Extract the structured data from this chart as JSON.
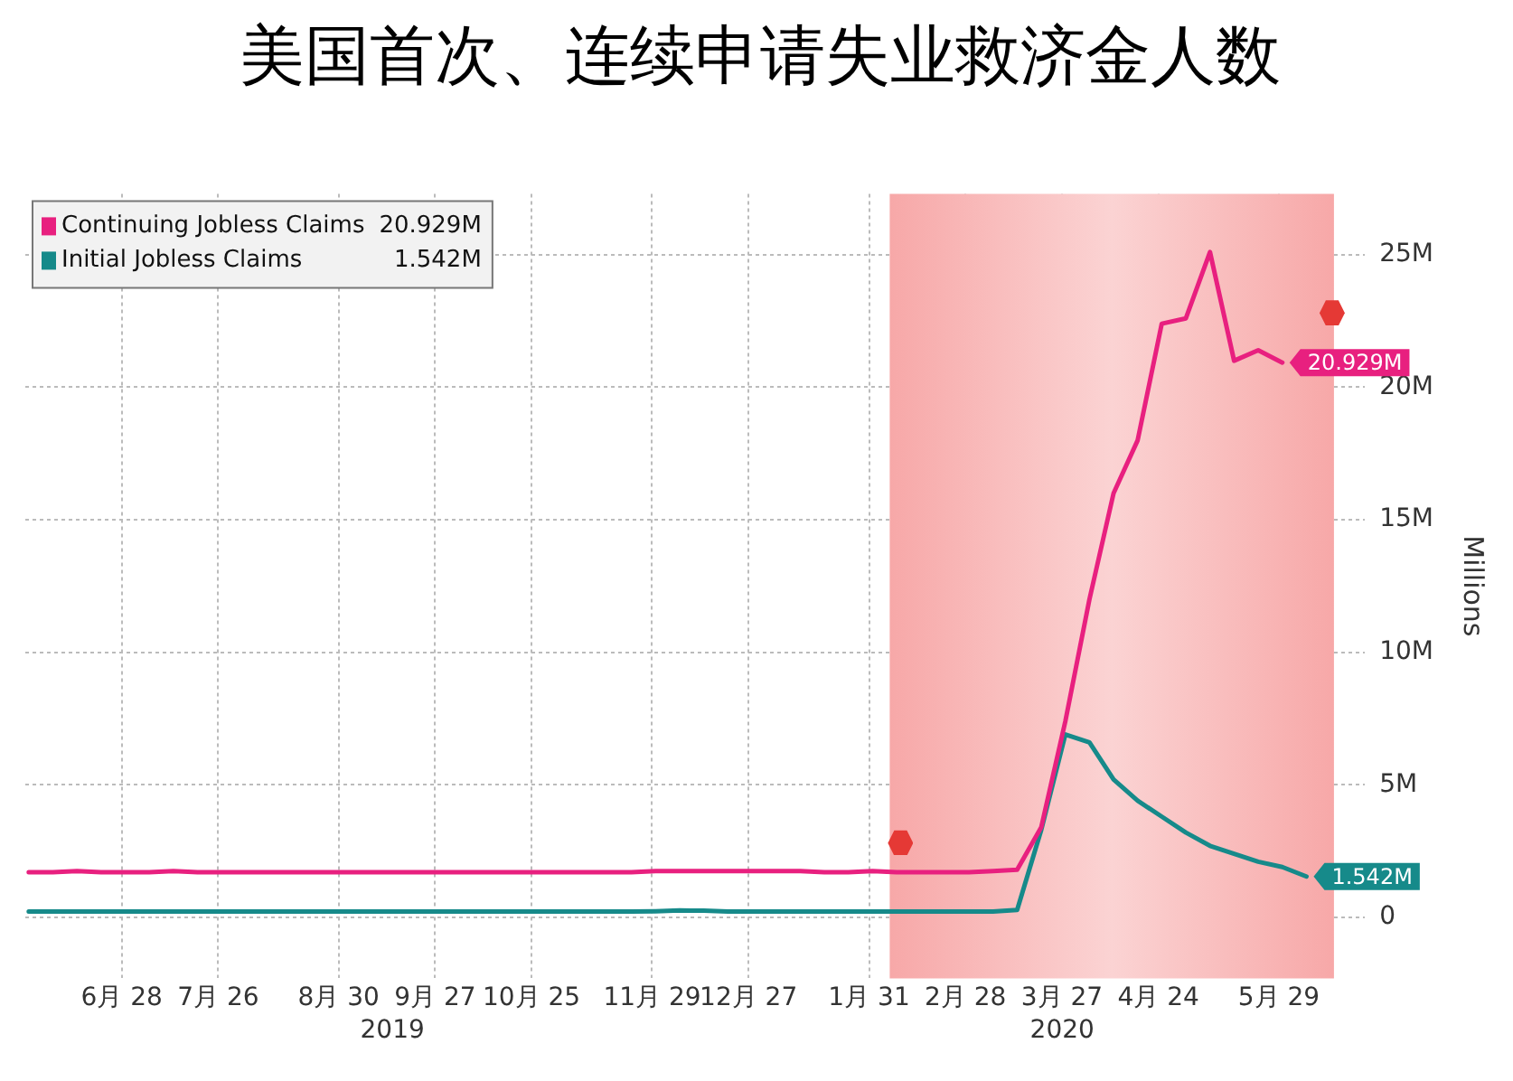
{
  "chart_data": {
    "type": "line",
    "title": "美国首次、连续申请失业救济金人数",
    "ylabel": "Millions",
    "x": [
      "2019-06-01",
      "2019-06-08",
      "2019-06-15",
      "2019-06-22",
      "2019-06-29",
      "2019-07-06",
      "2019-07-13",
      "2019-07-20",
      "2019-07-27",
      "2019-08-03",
      "2019-08-10",
      "2019-08-17",
      "2019-08-24",
      "2019-08-31",
      "2019-09-07",
      "2019-09-14",
      "2019-09-21",
      "2019-09-28",
      "2019-10-05",
      "2019-10-12",
      "2019-10-19",
      "2019-10-26",
      "2019-11-02",
      "2019-11-09",
      "2019-11-16",
      "2019-11-23",
      "2019-11-30",
      "2019-12-07",
      "2019-12-14",
      "2019-12-21",
      "2019-12-28",
      "2020-01-04",
      "2020-01-11",
      "2020-01-18",
      "2020-01-25",
      "2020-02-01",
      "2020-02-08",
      "2020-02-15",
      "2020-02-22",
      "2020-02-29",
      "2020-03-07",
      "2020-03-14",
      "2020-03-21",
      "2020-03-28",
      "2020-04-04",
      "2020-04-11",
      "2020-04-18",
      "2020-04-25",
      "2020-05-02",
      "2020-05-09",
      "2020-05-16",
      "2020-05-23",
      "2020-05-30",
      "2020-06-06"
    ],
    "series": [
      {
        "name": "Continuing Jobless Claims",
        "color": "#e8207f",
        "values": [
          1.7,
          1.7,
          1.75,
          1.7,
          1.7,
          1.7,
          1.75,
          1.7,
          1.7,
          1.7,
          1.7,
          1.7,
          1.7,
          1.7,
          1.7,
          1.7,
          1.7,
          1.7,
          1.7,
          1.7,
          1.7,
          1.7,
          1.7,
          1.7,
          1.7,
          1.7,
          1.75,
          1.75,
          1.75,
          1.75,
          1.75,
          1.75,
          1.75,
          1.7,
          1.7,
          1.75,
          1.7,
          1.7,
          1.7,
          1.7,
          1.75,
          1.8,
          3.4,
          7.4,
          12.0,
          16.0,
          18.0,
          22.4,
          22.6,
          25.1,
          21.0,
          21.4,
          20.929,
          null
        ],
        "value_labels": [
          null,
          null,
          null,
          null,
          null,
          null,
          null,
          null,
          null,
          null,
          null,
          null,
          null,
          null,
          null,
          null,
          null,
          null,
          null,
          null,
          null,
          null,
          null,
          null,
          null,
          null,
          null,
          null,
          null,
          null,
          null,
          null,
          null,
          null,
          null,
          null,
          null,
          null,
          null,
          null,
          null,
          null,
          null,
          null,
          null,
          null,
          null,
          null,
          null,
          null,
          null,
          null,
          "20.929M",
          null
        ]
      },
      {
        "name": "Initial Jobless Claims",
        "color": "#168a8a",
        "values": [
          0.22,
          0.22,
          0.22,
          0.22,
          0.22,
          0.22,
          0.22,
          0.22,
          0.22,
          0.22,
          0.22,
          0.22,
          0.22,
          0.22,
          0.22,
          0.22,
          0.22,
          0.22,
          0.22,
          0.22,
          0.22,
          0.22,
          0.22,
          0.22,
          0.22,
          0.22,
          0.23,
          0.26,
          0.25,
          0.22,
          0.22,
          0.22,
          0.22,
          0.22,
          0.22,
          0.22,
          0.22,
          0.22,
          0.22,
          0.22,
          0.22,
          0.28,
          3.3,
          6.9,
          6.6,
          5.2,
          4.4,
          3.8,
          3.2,
          2.7,
          2.4,
          2.1,
          1.9,
          1.542
        ],
        "value_labels": [
          null,
          null,
          null,
          null,
          null,
          null,
          null,
          null,
          null,
          null,
          null,
          null,
          null,
          null,
          null,
          null,
          null,
          null,
          null,
          null,
          null,
          null,
          null,
          null,
          null,
          null,
          null,
          null,
          null,
          null,
          null,
          null,
          null,
          null,
          null,
          null,
          null,
          null,
          null,
          null,
          null,
          null,
          null,
          null,
          null,
          null,
          null,
          null,
          null,
          null,
          null,
          null,
          null,
          "1.542M"
        ]
      }
    ],
    "xlim": [
      "2019-05-31",
      "2020-06-23"
    ],
    "xticks": [
      {
        "value": "2019-06-28",
        "label": "6月 28"
      },
      {
        "value": "2019-07-26",
        "label": "7月 26"
      },
      {
        "value": "2019-08-30",
        "label": "8月 30"
      },
      {
        "value": "2019-09-27",
        "label": "9月 27"
      },
      {
        "value": "2019-10-25",
        "label": "10月 25"
      },
      {
        "value": "2019-11-29",
        "label": "11月 29"
      },
      {
        "value": "2019-12-27",
        "label": "12月 27"
      },
      {
        "value": "2020-01-31",
        "label": "1月 31"
      },
      {
        "value": "2020-02-28",
        "label": "2月 28"
      },
      {
        "value": "2020-03-27",
        "label": "3月 27"
      },
      {
        "value": "2020-04-24",
        "label": "4月 24"
      },
      {
        "value": "2020-05-29",
        "label": "5月 29"
      }
    ],
    "ylim": [
      -2.3,
      27.3
    ],
    "yticks": [
      {
        "value": 0,
        "label": "0"
      },
      {
        "value": 5,
        "label": "5M"
      },
      {
        "value": 10,
        "label": "10M"
      },
      {
        "value": 15,
        "label": "15M"
      },
      {
        "value": 20,
        "label": "20M"
      },
      {
        "value": 25,
        "label": "25M"
      }
    ],
    "bands": [
      {
        "axis": "x",
        "from": "2020-02-06",
        "to": "2020-06-14",
        "color": "#f7a8a8"
      }
    ],
    "annotations": [
      "2019",
      "2020"
    ],
    "grid": true,
    "legend": "top left",
    "marker": "none",
    "line_style": "solid"
  }
}
